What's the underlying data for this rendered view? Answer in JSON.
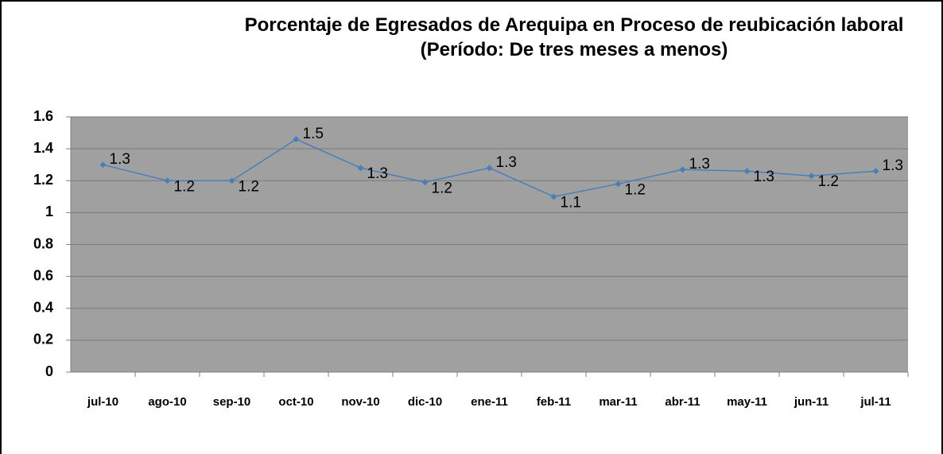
{
  "chart_data": {
    "type": "line",
    "title": "Porcentaje de Egresados de Arequipa en Proceso de reubicación laboral",
    "subtitle": "(Período: De tres meses a menos)",
    "categories": [
      "jul-10",
      "ago-10",
      "sep-10",
      "oct-10",
      "nov-10",
      "dic-10",
      "ene-11",
      "feb-11",
      "mar-11",
      "abr-11",
      "may-11",
      "jun-11",
      "jul-11"
    ],
    "series": [
      {
        "color": "#4a7ebb",
        "values": [
          1.3,
          1.2,
          1.2,
          1.46,
          1.28,
          1.19,
          1.28,
          1.1,
          1.18,
          1.27,
          1.26,
          1.23,
          1.26
        ],
        "value_labels": [
          "1.3",
          "1.2",
          "1.2",
          "1.5",
          "1.3",
          "1.2",
          "1.3",
          "1.1",
          "1.2",
          "1.3",
          "1.3",
          "1.2",
          "1.3"
        ]
      }
    ],
    "ylim": [
      0,
      1.6
    ],
    "yticks": [
      0,
      0.2,
      0.4,
      0.6,
      0.8,
      1,
      1.2,
      1.4,
      1.6
    ],
    "grid": true
  }
}
